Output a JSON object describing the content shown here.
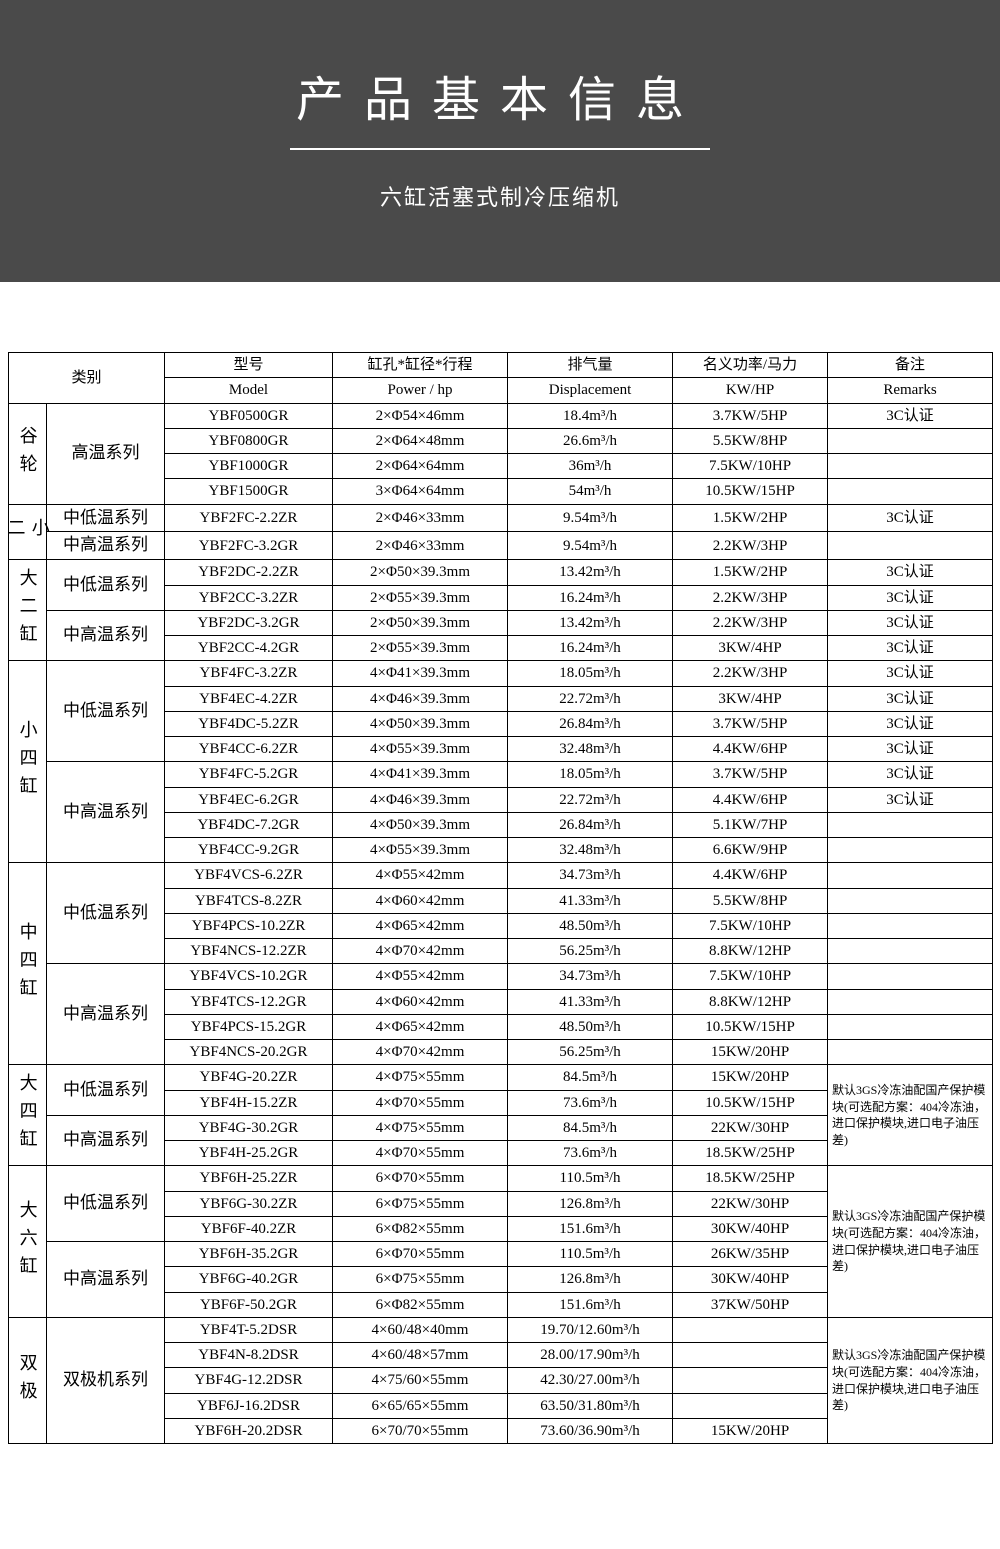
{
  "header": {
    "title": "产品基本信息",
    "subtitle": "六缸活塞式制冷压缩机",
    "bg_color": "#4a4a4a",
    "text_color": "#ffffff"
  },
  "colheads_cn": [
    "类别",
    "型号",
    "缸孔*缸径*行程",
    "排气量",
    "名义功率/马力",
    "备注"
  ],
  "colheads_en": [
    "Model",
    "Power / hp",
    "Displacement",
    "KW/HP",
    "Remarks"
  ],
  "groups": [
    {
      "cat": "谷轮",
      "series": [
        {
          "name": "高温系列",
          "rows": [
            [
              "YBF0500GR",
              "2×Φ54×46mm",
              "18.4m³/h",
              "3.7KW/5HP",
              "3C认证"
            ],
            [
              "YBF0800GR",
              "2×Φ64×48mm",
              "26.6m³/h",
              "5.5KW/8HP",
              ""
            ],
            [
              "YBF1000GR",
              "2×Φ64×64mm",
              "36m³/h",
              "7.5KW/10HP",
              ""
            ],
            [
              "YBF1500GR",
              "3×Φ64×64mm",
              "54m³/h",
              "10.5KW/15HP",
              ""
            ]
          ]
        }
      ]
    },
    {
      "cat": "小二",
      "series": [
        {
          "name": "中低温系列",
          "rows": [
            [
              "YBF2FC-2.2ZR",
              "2×Φ46×33mm",
              "9.54m³/h",
              "1.5KW/2HP",
              "3C认证"
            ]
          ]
        },
        {
          "name": "中高温系列",
          "rows": [
            [
              "YBF2FC-3.2GR",
              "2×Φ46×33mm",
              "9.54m³/h",
              "2.2KW/3HP",
              ""
            ]
          ]
        }
      ]
    },
    {
      "cat": "大二缸",
      "series": [
        {
          "name": "中低温系列",
          "rows": [
            [
              "YBF2DC-2.2ZR",
              "2×Φ50×39.3mm",
              "13.42m³/h",
              "1.5KW/2HP",
              "3C认证"
            ],
            [
              "YBF2CC-3.2ZR",
              "2×Φ55×39.3mm",
              "16.24m³/h",
              "2.2KW/3HP",
              "3C认证"
            ]
          ]
        },
        {
          "name": "中高温系列",
          "rows": [
            [
              "YBF2DC-3.2GR",
              "2×Φ50×39.3mm",
              "13.42m³/h",
              "2.2KW/3HP",
              "3C认证"
            ],
            [
              "YBF2CC-4.2GR",
              "2×Φ55×39.3mm",
              "16.24m³/h",
              "3KW/4HP",
              "3C认证"
            ]
          ]
        }
      ]
    },
    {
      "cat": "小四缸",
      "series": [
        {
          "name": "中低温系列",
          "rows": [
            [
              "YBF4FC-3.2ZR",
              "4×Φ41×39.3mm",
              "18.05m³/h",
              "2.2KW/3HP",
              "3C认证"
            ],
            [
              "YBF4EC-4.2ZR",
              "4×Φ46×39.3mm",
              "22.72m³/h",
              "3KW/4HP",
              "3C认证"
            ],
            [
              "YBF4DC-5.2ZR",
              "4×Φ50×39.3mm",
              "26.84m³/h",
              "3.7KW/5HP",
              "3C认证"
            ],
            [
              "YBF4CC-6.2ZR",
              "4×Φ55×39.3mm",
              "32.48m³/h",
              "4.4KW/6HP",
              "3C认证"
            ]
          ]
        },
        {
          "name": "中高温系列",
          "rows": [
            [
              "YBF4FC-5.2GR",
              "4×Φ41×39.3mm",
              "18.05m³/h",
              "3.7KW/5HP",
              "3C认证"
            ],
            [
              "YBF4EC-6.2GR",
              "4×Φ46×39.3mm",
              "22.72m³/h",
              "4.4KW/6HP",
              "3C认证"
            ],
            [
              "YBF4DC-7.2GR",
              "4×Φ50×39.3mm",
              "26.84m³/h",
              "5.1KW/7HP",
              ""
            ],
            [
              "YBF4CC-9.2GR",
              "4×Φ55×39.3mm",
              "32.48m³/h",
              "6.6KW/9HP",
              ""
            ]
          ]
        }
      ]
    },
    {
      "cat": "中四缸",
      "series": [
        {
          "name": "中低温系列",
          "rows": [
            [
              "YBF4VCS-6.2ZR",
              "4×Φ55×42mm",
              "34.73m³/h",
              "4.4KW/6HP",
              ""
            ],
            [
              "YBF4TCS-8.2ZR",
              "4×Φ60×42mm",
              "41.33m³/h",
              "5.5KW/8HP",
              ""
            ],
            [
              "YBF4PCS-10.2ZR",
              "4×Φ65×42mm",
              "48.50m³/h",
              "7.5KW/10HP",
              ""
            ],
            [
              "YBF4NCS-12.2ZR",
              "4×Φ70×42mm",
              "56.25m³/h",
              "8.8KW/12HP",
              ""
            ]
          ]
        },
        {
          "name": "中高温系列",
          "rows": [
            [
              "YBF4VCS-10.2GR",
              "4×Φ55×42mm",
              "34.73m³/h",
              "7.5KW/10HP",
              ""
            ],
            [
              "YBF4TCS-12.2GR",
              "4×Φ60×42mm",
              "41.33m³/h",
              "8.8KW/12HP",
              ""
            ],
            [
              "YBF4PCS-15.2GR",
              "4×Φ65×42mm",
              "48.50m³/h",
              "10.5KW/15HP",
              ""
            ],
            [
              "YBF4NCS-20.2GR",
              "4×Φ70×42mm",
              "56.25m³/h",
              "15KW/20HP",
              ""
            ]
          ]
        }
      ]
    },
    {
      "cat": "大四缸",
      "remark": "默认3GS冷冻油配国产保护模块(可选配方案：404冷冻油，进口保护模块,进口电子油压差)",
      "series": [
        {
          "name": "中低温系列",
          "rows": [
            [
              "YBF4G-20.2ZR",
              "4×Φ75×55mm",
              "84.5m³/h",
              "15KW/20HP"
            ],
            [
              "YBF4H-15.2ZR",
              "4×Φ70×55mm",
              "73.6m³/h",
              "10.5KW/15HP"
            ]
          ]
        },
        {
          "name": "中高温系列",
          "rows": [
            [
              "YBF4G-30.2GR",
              "4×Φ75×55mm",
              "84.5m³/h",
              "22KW/30HP"
            ],
            [
              "YBF4H-25.2GR",
              "4×Φ70×55mm",
              "73.6m³/h",
              "18.5KW/25HP"
            ]
          ]
        }
      ]
    },
    {
      "cat": "大六缸",
      "remark": "默认3GS冷冻油配国产保护模块(可选配方案：404冷冻油，进口保护模块,进口电子油压差)",
      "series": [
        {
          "name": "中低温系列",
          "rows": [
            [
              "YBF6H-25.2ZR",
              "6×Φ70×55mm",
              "110.5m³/h",
              "18.5KW/25HP"
            ],
            [
              "YBF6G-30.2ZR",
              "6×Φ75×55mm",
              "126.8m³/h",
              "22KW/30HP"
            ],
            [
              "YBF6F-40.2ZR",
              "6×Φ82×55mm",
              "151.6m³/h",
              "30KW/40HP"
            ]
          ]
        },
        {
          "name": "中高温系列",
          "rows": [
            [
              "YBF6H-35.2GR",
              "6×Φ70×55mm",
              "110.5m³/h",
              "26KW/35HP"
            ],
            [
              "YBF6G-40.2GR",
              "6×Φ75×55mm",
              "126.8m³/h",
              "30KW/40HP"
            ],
            [
              "YBF6F-50.2GR",
              "6×Φ82×55mm",
              "151.6m³/h",
              "37KW/50HP"
            ]
          ]
        }
      ]
    },
    {
      "cat": "双极",
      "remark": "默认3GS冷冻油配国产保护模块(可选配方案：404冷冻油，进口保护模块,进口电子油压差)",
      "series": [
        {
          "name": "双极机系列",
          "rows": [
            [
              "YBF4T-5.2DSR",
              "4×60/48×40mm",
              "19.70/12.60m³/h",
              ""
            ],
            [
              "YBF4N-8.2DSR",
              "4×60/48×57mm",
              "28.00/17.90m³/h",
              ""
            ],
            [
              "YBF4G-12.2DSR",
              "4×75/60×55mm",
              "42.30/27.00m³/h",
              ""
            ],
            [
              "YBF6J-16.2DSR",
              "6×65/65×55mm",
              "63.50/31.80m³/h",
              ""
            ],
            [
              "YBF6H-20.2DSR",
              "6×70/70×55mm",
              "73.60/36.90m³/h",
              "15KW/20HP"
            ]
          ]
        }
      ]
    }
  ]
}
